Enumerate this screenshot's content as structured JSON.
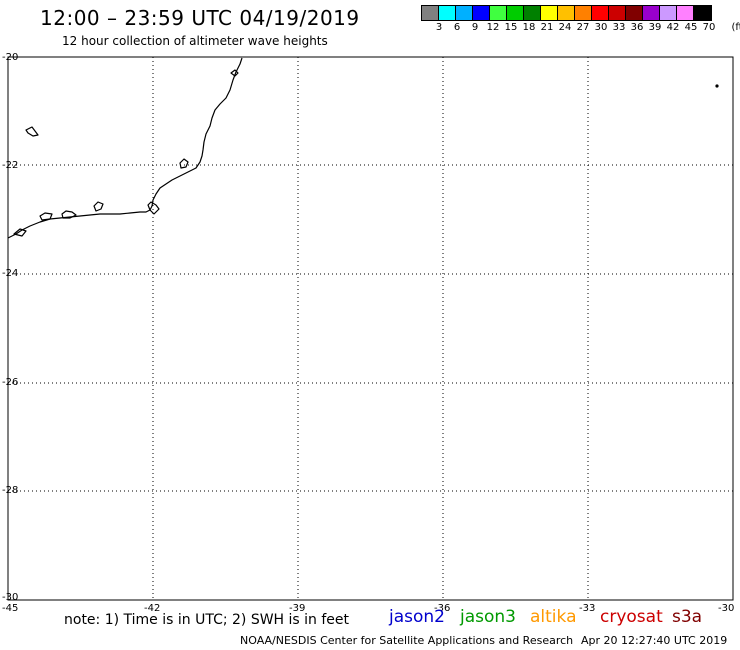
{
  "header": {
    "title": "12:00 – 23:59 UTC 04/19/2019",
    "subtitle": "12 hour collection of altimeter wave heights"
  },
  "scale": {
    "unit": "(ft)",
    "colors": [
      "#808080",
      "#00ffff",
      "#00b0ff",
      "#0000ff",
      "#40ff40",
      "#00cc00",
      "#008000",
      "#ffff00",
      "#ffc000",
      "#ff8000",
      "#ff0000",
      "#cc0000",
      "#800000",
      "#9900cc",
      "#cc99ff",
      "#ff80ff",
      "#000000"
    ],
    "labels": [
      "3",
      "6",
      "9",
      "12",
      "15",
      "18",
      "21",
      "24",
      "27",
      "30",
      "33",
      "36",
      "39",
      "42",
      "45",
      "70"
    ]
  },
  "map": {
    "lon_ticks": [
      "-45",
      "-42",
      "-39",
      "-36",
      "-33",
      "-30"
    ],
    "lat_ticks": [
      "-20",
      "-22",
      "-24",
      "-26",
      "-28",
      "-30"
    ],
    "lon_range": [
      -45,
      -30
    ],
    "lat_range": [
      -30,
      -20
    ]
  },
  "footer": {
    "note": "note: 1) Time is in UTC; 2) SWH is in feet",
    "credit": "NOAA/NESDIS Center for Satellite Applications and Research",
    "timestamp": "Apr 20 12:27:40 UTC 2019"
  },
  "legend": [
    {
      "name": "jason2",
      "color": "#0000cc"
    },
    {
      "name": "jason3",
      "color": "#009900"
    },
    {
      "name": "altika",
      "color": "#ff9900"
    },
    {
      "name": "cryosat",
      "color": "#cc0000"
    },
    {
      "name": "s3a",
      "color": "#800000"
    }
  ]
}
